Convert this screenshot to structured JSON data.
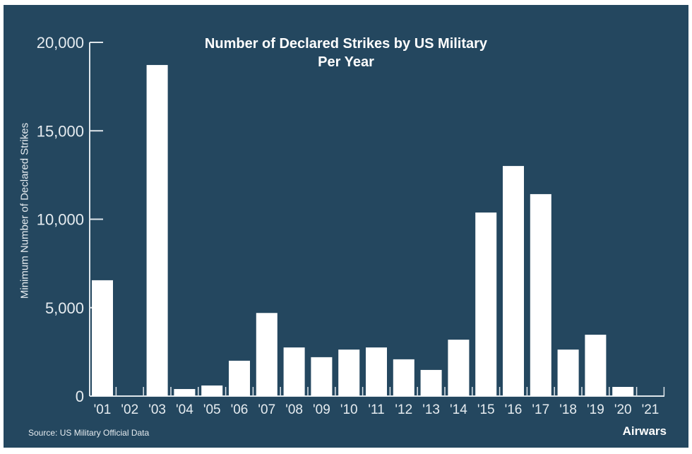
{
  "chart_data": {
    "type": "bar",
    "title": "Number of Declared Strikes by US Military",
    "subtitle": "Per Year",
    "ylabel": "Minimum Number of Declared Strikes",
    "xlabel": "",
    "ylim": [
      0,
      20000
    ],
    "yticks": [
      0,
      5000,
      10000,
      15000,
      20000
    ],
    "ytick_labels": [
      "0",
      "5,000",
      "10,000",
      "15,000",
      "20,000"
    ],
    "categories": [
      "'01",
      "'02",
      "'03",
      "'04",
      "'05",
      "'06",
      "'07",
      "'08",
      "'09",
      "'10",
      "'11",
      "'12",
      "'13",
      "'14",
      "'15",
      "'16",
      "'17",
      "'18",
      "'19",
      "'20",
      "'21"
    ],
    "values": [
      6550,
      0,
      18720,
      400,
      600,
      2000,
      4700,
      2750,
      2200,
      2630,
      2750,
      2080,
      1480,
      3190,
      10380,
      13010,
      11420,
      2630,
      3470,
      520,
      0
    ],
    "grid": false,
    "colors": {
      "background": "#24475f",
      "bar": "#ffffff",
      "axis": "#dfe6eb"
    }
  },
  "footer": {
    "source": "Source: US Military Official Data",
    "brand": "Airwars"
  }
}
